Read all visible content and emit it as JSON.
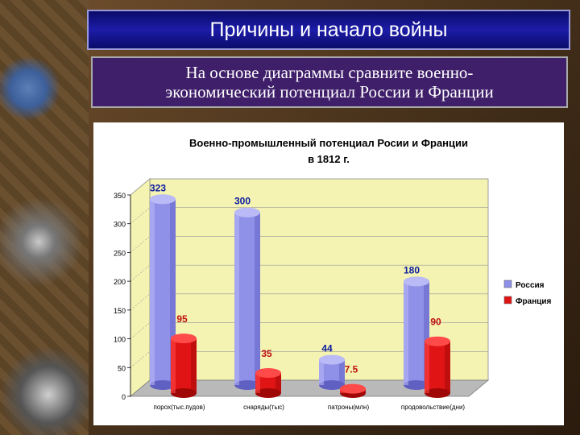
{
  "slide": {
    "title": "Причины и начало войны",
    "task_line1": "На основе диаграммы сравните военно-",
    "task_line2": "экономический потенциал России и Франции"
  },
  "colors": {
    "russia": "#8f90e8",
    "france": "#e01414",
    "plot_area": "#f4f3b2",
    "russia_label": "#0a1aa0",
    "france_label": "#c01010"
  },
  "chart_data": {
    "type": "bar",
    "title_line1": "Военно-промышленный потенциал Росии и Франции",
    "title_line2": "в 1812 г.",
    "categories": [
      "порох(тыс.пудов)",
      "снаряды(тыс)",
      "патроны(млн)",
      "продовольствие(дни)"
    ],
    "series": [
      {
        "name": "Россия",
        "values": [
          323,
          300,
          44,
          180
        ],
        "labels": [
          "323",
          "300",
          "44",
          "180"
        ]
      },
      {
        "name": "Франция",
        "values": [
          95,
          35,
          7.5,
          90
        ],
        "labels": [
          "95",
          "35",
          "7.5",
          "90"
        ]
      }
    ],
    "ylim": [
      0,
      350
    ],
    "yticks": [
      "0",
      "50",
      "100",
      "150",
      "200",
      "250",
      "300",
      "350"
    ],
    "grid": true,
    "legend": "right"
  }
}
